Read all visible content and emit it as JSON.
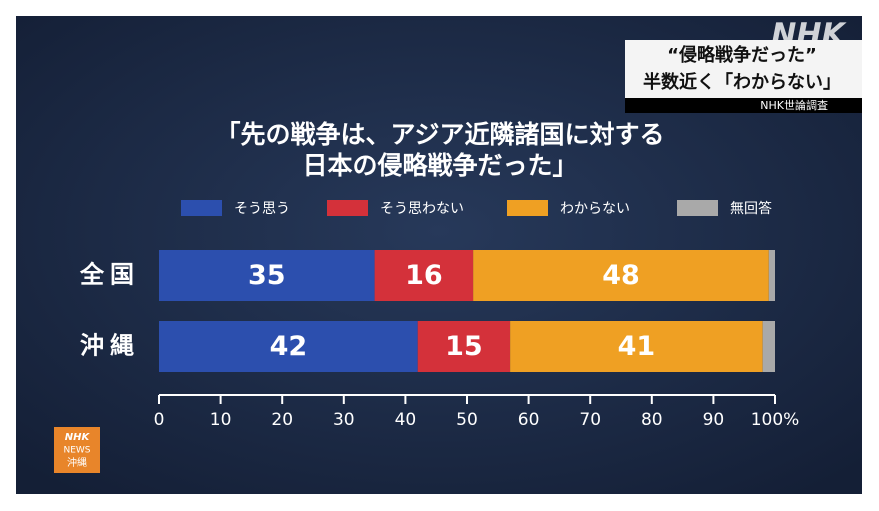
{
  "chart_data": {
    "type": "stacked-bar-horizontal",
    "title": [
      "「先の戦争は、アジア近隣諸国に対する",
      "日本の侵略戦争だった」"
    ],
    "categories": [
      "全国",
      "沖縄"
    ],
    "series": [
      {
        "name": "そう思う",
        "color": "#2c4fae",
        "values": [
          35,
          42
        ]
      },
      {
        "name": "そう思わない",
        "color": "#d4313a",
        "values": [
          16,
          15
        ]
      },
      {
        "name": "わからない",
        "color": "#efa023",
        "values": [
          48,
          41
        ]
      },
      {
        "name": "無回答",
        "color": "#a9a9a9",
        "values": [
          1,
          2
        ]
      }
    ],
    "value_labels_shown_for": [
      0,
      1,
      2
    ],
    "xlim": [
      0,
      100
    ],
    "xticks": [
      0,
      10,
      20,
      30,
      40,
      50,
      60,
      70,
      80,
      90,
      {
        "value": 100,
        "label": "100%"
      }
    ]
  },
  "overlay": {
    "logo": "NHK",
    "caption": [
      "“侵略戦争だった”",
      "半数近く「わからない」"
    ],
    "source": "NHK世論調査",
    "channel_logo": [
      "NHK",
      "NEWS",
      "沖縄"
    ]
  }
}
